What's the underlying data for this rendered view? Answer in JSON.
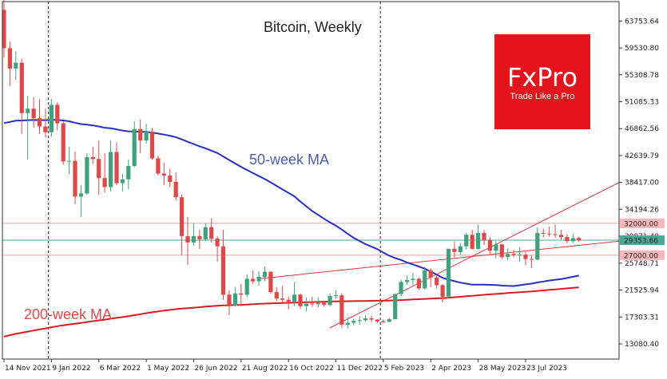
{
  "chart_data": {
    "type": "candlestick",
    "title": "Bitcoin, Weekly",
    "y_ticks": [
      "63753.64",
      "59530.80",
      "55308.78",
      "51085.33",
      "46862.56",
      "42639.79",
      "38417.00",
      "34194.26",
      "29971.49",
      "25748.71",
      "21525.94",
      "17303.31",
      "13080.40"
    ],
    "y_tick_values": [
      63753.64,
      59530.8,
      55308.78,
      51085.33,
      46862.56,
      42639.79,
      38417.0,
      34194.26,
      29971.49,
      25748.71,
      21525.94,
      17303.31,
      13080.4
    ],
    "ylim": [
      10700,
      66800
    ],
    "x_ticks": [
      "14 Nov 2021",
      "9 Jan 2022",
      "6 Mar 2022",
      "1 May 2022",
      "26 Jun 2022",
      "21 Aug 2022",
      "16 Oct 2022",
      "11 Dec 2022",
      "5 Feb 2023",
      "2 Apr 2023",
      "28 May 2023",
      "23 Jul 2023"
    ],
    "price_levels": [
      {
        "label": "32000.00",
        "value": 32000,
        "color": "#e8a0a0"
      },
      {
        "label": "27000.00",
        "value": 27000,
        "color": "#e8a0a0"
      }
    ],
    "current_price": {
      "label": "29353.66",
      "value": 29353.66,
      "color": "#4aa896"
    },
    "annotations": {
      "ma50": "50-week MA",
      "ma200": "200-week MA",
      "logo_main": "FxPro",
      "logo_tagline": "Trade Like a Pro"
    },
    "ohlc": [
      [
        65500,
        69000,
        58000,
        59500
      ],
      [
        59500,
        60500,
        53500,
        56300
      ],
      [
        56300,
        59000,
        54500,
        57200
      ],
      [
        57200,
        57800,
        46000,
        49300
      ],
      [
        49300,
        52000,
        42000,
        50000
      ],
      [
        50000,
        51800,
        47000,
        48500
      ],
      [
        48500,
        51500,
        46000,
        47200
      ],
      [
        47200,
        50000,
        45500,
        46300
      ],
      [
        46300,
        51500,
        45600,
        50600
      ],
      [
        50600,
        51000,
        46600,
        47700
      ],
      [
        47700,
        48000,
        41200,
        41700
      ],
      [
        41700,
        44000,
        39700,
        41800
      ],
      [
        41800,
        43300,
        35000,
        36200
      ],
      [
        36200,
        38000,
        33000,
        36700
      ],
      [
        36700,
        43000,
        36500,
        42400
      ],
      [
        42400,
        44000,
        41300,
        42100
      ],
      [
        42100,
        45000,
        36500,
        39100
      ],
      [
        39100,
        43000,
        36800,
        37700
      ],
      [
        37700,
        45000,
        37000,
        43200
      ],
      [
        43200,
        44700,
        38000,
        38300
      ],
      [
        38300,
        39800,
        37000,
        38900
      ],
      [
        38900,
        42000,
        37300,
        41000
      ],
      [
        41000,
        48000,
        40800,
        46800
      ],
      [
        46800,
        48300,
        43000,
        45000
      ],
      [
        45000,
        47600,
        44500,
        46400
      ],
      [
        46400,
        47000,
        42000,
        42200
      ],
      [
        42200,
        42600,
        39500,
        39800
      ],
      [
        39800,
        41500,
        38000,
        39500
      ],
      [
        39500,
        40600,
        37700,
        38500
      ],
      [
        38500,
        40000,
        35600,
        36100
      ],
      [
        36100,
        36500,
        27000,
        30000
      ],
      [
        30000,
        33000,
        25500,
        29000
      ],
      [
        29000,
        32000,
        28500,
        30000
      ],
      [
        30000,
        31000,
        28000,
        29500
      ],
      [
        29500,
        32000,
        29200,
        31400
      ],
      [
        31400,
        32800,
        29000,
        29600
      ],
      [
        29600,
        30000,
        26000,
        28400
      ],
      [
        28400,
        31000,
        20000,
        20800
      ],
      [
        20800,
        21500,
        17600,
        19100
      ],
      [
        19100,
        22000,
        18900,
        21000
      ],
      [
        21000,
        22500,
        19000,
        20800
      ],
      [
        20800,
        24000,
        20400,
        23300
      ],
      [
        23300,
        24600,
        22500,
        22900
      ],
      [
        22900,
        24500,
        22200,
        23600
      ],
      [
        23600,
        25200,
        22900,
        24400
      ],
      [
        24400,
        24500,
        21000,
        21200
      ],
      [
        21200,
        22000,
        19800,
        20200
      ],
      [
        20200,
        22200,
        19600,
        20000
      ],
      [
        20000,
        20500,
        18500,
        19700
      ],
      [
        19700,
        22800,
        19000,
        20800
      ],
      [
        20800,
        21000,
        18600,
        19000
      ],
      [
        19000,
        20400,
        18200,
        19400
      ],
      [
        19400,
        20500,
        18900,
        19300
      ],
      [
        19300,
        20400,
        18800,
        19500
      ],
      [
        19500,
        19700,
        18900,
        19200
      ],
      [
        19200,
        21000,
        19000,
        20600
      ],
      [
        20600,
        21500,
        20200,
        20700
      ],
      [
        20700,
        21000,
        15600,
        16100
      ],
      [
        16100,
        17200,
        15500,
        16400
      ],
      [
        16400,
        17000,
        16000,
        16700
      ],
      [
        16700,
        17400,
        16100,
        16800
      ],
      [
        16800,
        17600,
        16600,
        17100
      ],
      [
        17100,
        17500,
        16500,
        16900
      ],
      [
        16900,
        17000,
        16300,
        16600
      ],
      [
        16600,
        16900,
        16400,
        16550
      ],
      [
        16550,
        17200,
        16500,
        16950
      ],
      [
        16950,
        21000,
        16900,
        20900
      ],
      [
        20900,
        23200,
        20500,
        22800
      ],
      [
        22800,
        23800,
        22300,
        23100
      ],
      [
        23100,
        24200,
        22200,
        23300
      ],
      [
        23300,
        23500,
        21500,
        21800
      ],
      [
        21800,
        25200,
        21600,
        24600
      ],
      [
        24600,
        25000,
        22000,
        23500
      ],
      [
        23500,
        24000,
        21800,
        22300
      ],
      [
        22300,
        22500,
        19600,
        20500
      ],
      [
        20500,
        28000,
        20300,
        28000
      ],
      [
        28000,
        29200,
        26600,
        27500
      ],
      [
        27500,
        28900,
        27000,
        28400
      ],
      [
        28400,
        30500,
        27900,
        30200
      ],
      [
        30200,
        31000,
        27900,
        28000
      ],
      [
        28000,
        31800,
        27900,
        30500
      ],
      [
        30500,
        31000,
        28600,
        29400
      ],
      [
        29400,
        29900,
        27200,
        27700
      ],
      [
        27700,
        29200,
        26500,
        28700
      ],
      [
        28700,
        28800,
        26400,
        26700
      ],
      [
        26700,
        28100,
        26200,
        27200
      ],
      [
        27200,
        27800,
        26700,
        27000
      ],
      [
        27000,
        28200,
        26000,
        27100
      ],
      [
        27100,
        27600,
        25400,
        26400
      ],
      [
        26400,
        27000,
        25000,
        26300
      ],
      [
        26300,
        31400,
        26200,
        30500
      ],
      [
        30500,
        31200,
        29800,
        30400
      ],
      [
        30400,
        31500,
        29900,
        30300
      ],
      [
        30300,
        31800,
        29700,
        30200
      ],
      [
        30200,
        31000,
        29500,
        29850
      ],
      [
        29850,
        30300,
        28900,
        29200
      ],
      [
        29200,
        30300,
        28900,
        29700
      ],
      [
        29700,
        29900,
        29100,
        29353.66
      ]
    ]
  }
}
